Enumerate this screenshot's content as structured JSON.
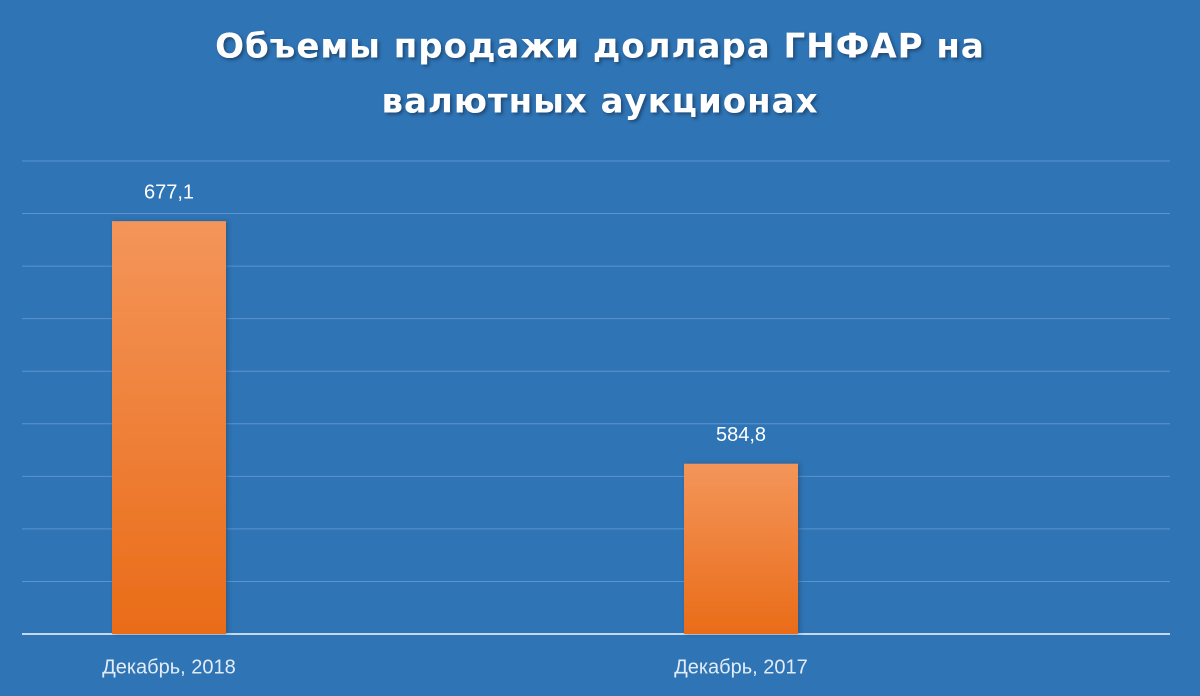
{
  "chart_data": {
    "type": "bar",
    "title": [
      "Объемы продажи доллара ГНФАР на",
      "валютных аукционах"
    ],
    "categories": [
      "Декабрь, 2018",
      "Декабрь, 2017"
    ],
    "values": [
      677.1,
      584.8
    ],
    "value_labels": [
      "677,1",
      "584,8"
    ],
    "color": "#ef7d32",
    "ylim": [
      520,
      700
    ],
    "yticks": [
      520,
      540,
      560,
      580,
      600,
      620,
      640,
      660,
      680,
      700
    ],
    "grid": true
  }
}
